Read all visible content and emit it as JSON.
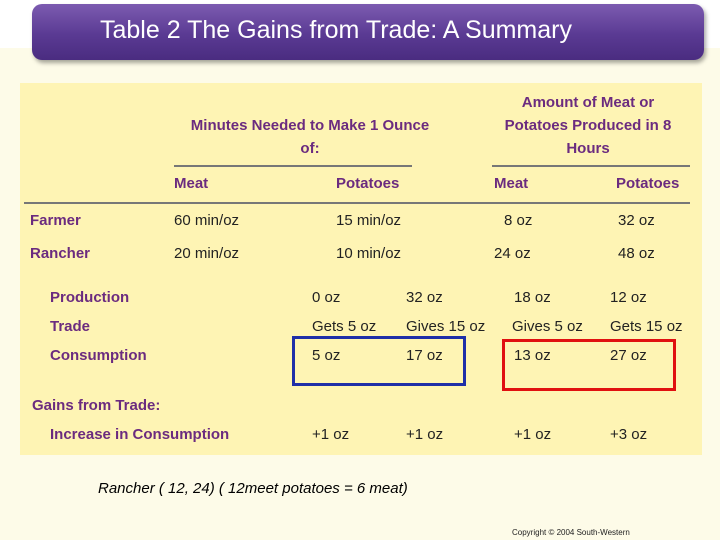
{
  "slide": {
    "title": "Table 2 The Gains from Trade: A Summary",
    "note": "Rancher ( 12, 24)   ( 12meet potatoes = 6 meat)",
    "copyright": "Copyright © 2004  South-Western"
  },
  "table": {
    "group_headers": [
      "Minutes Needed to Make 1 Ounce of:",
      "Amount of Meat or Potatoes Produced in 8 Hours"
    ],
    "col_headers": [
      "Meat",
      "Potatoes",
      "Meat",
      "Potatoes"
    ],
    "rows": [
      {
        "label": "Farmer",
        "values": [
          "60 min/oz",
          "15 min/oz",
          "8 oz",
          "32 oz"
        ]
      },
      {
        "label": "Rancher",
        "values": [
          "20 min/oz",
          "10 min/oz",
          "24 oz",
          "48 oz"
        ]
      }
    ],
    "trade_rows": [
      {
        "label": "Production",
        "values": [
          "0 oz",
          "32 oz",
          "18 oz",
          "12 oz"
        ]
      },
      {
        "label": "Trade",
        "values": [
          "Gets 5 oz",
          "Gives 15 oz",
          "Gives 5 oz",
          "Gets 15 oz"
        ]
      },
      {
        "label": "Consumption",
        "values": [
          "5 oz",
          "17 oz",
          "13 oz",
          "27 oz"
        ]
      }
    ],
    "gains": {
      "label": "Gains from Trade:",
      "row_label": "Increase in Consumption",
      "values": [
        "+1 oz",
        "+1 oz",
        "+1 oz",
        "+3 oz"
      ]
    }
  },
  "highlights": {
    "left_color": "#1f2fa8",
    "right_color": "#e01010"
  }
}
